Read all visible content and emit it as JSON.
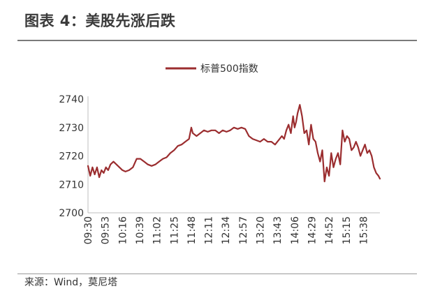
{
  "figure": {
    "title": "图表 4：美股先涨后跌",
    "source": "来源：Wind，莫尼塔"
  },
  "chart_data": {
    "type": "line",
    "title": "图表 4：美股先涨后跌",
    "xlabel": "",
    "ylabel": "",
    "ylim": [
      2700,
      2740
    ],
    "yticks": [
      2700,
      2710,
      2720,
      2730,
      2740
    ],
    "grid": false,
    "legend": "top-center",
    "colors": {
      "line": "#9b2d2f",
      "axis": "#bfbfbf",
      "text": "#333333"
    },
    "xtick_labels": [
      "09:30",
      "09:53",
      "10:16",
      "10:39",
      "11:02",
      "11:25",
      "11:48",
      "12:11",
      "12:34",
      "12:57",
      "13:20",
      "13:43",
      "14:06",
      "14:29",
      "14:52",
      "15:15",
      "15:38"
    ],
    "series": [
      {
        "name": "标普500指数",
        "x": [
          "09:30",
          "09:33",
          "09:36",
          "09:39",
          "09:42",
          "09:45",
          "09:48",
          "09:51",
          "09:54",
          "09:57",
          "10:00",
          "10:04",
          "10:08",
          "10:12",
          "10:16",
          "10:20",
          "10:25",
          "10:30",
          "10:35",
          "10:40",
          "10:45",
          "10:50",
          "10:55",
          "11:00",
          "11:05",
          "11:10",
          "11:15",
          "11:20",
          "11:25",
          "11:30",
          "11:35",
          "11:40",
          "11:45",
          "11:48",
          "11:50",
          "11:55",
          "12:00",
          "12:05",
          "12:10",
          "12:15",
          "12:20",
          "12:25",
          "12:30",
          "12:35",
          "12:40",
          "12:45",
          "12:50",
          "12:55",
          "13:00",
          "13:05",
          "13:10",
          "13:15",
          "13:20",
          "13:25",
          "13:30",
          "13:35",
          "13:40",
          "13:43",
          "13:46",
          "13:49",
          "13:52",
          "13:55",
          "13:58",
          "14:01",
          "14:04",
          "14:06",
          "14:08",
          "14:10",
          "14:13",
          "14:16",
          "14:19",
          "14:22",
          "14:25",
          "14:28",
          "14:31",
          "14:34",
          "14:37",
          "14:40",
          "14:43",
          "14:46",
          "14:49",
          "14:52",
          "14:55",
          "14:58",
          "15:01",
          "15:04",
          "15:07",
          "15:10",
          "15:13",
          "15:16",
          "15:19",
          "15:22",
          "15:25",
          "15:28",
          "15:31",
          "15:34",
          "15:37",
          "15:40",
          "15:43",
          "15:46",
          "15:49",
          "15:52",
          "15:55",
          "15:58",
          "16:00"
        ],
        "values": [
          2716.5,
          2713,
          2716,
          2713.5,
          2716,
          2712.5,
          2715,
          2714,
          2716,
          2715,
          2717,
          2718,
          2717,
          2716,
          2715,
          2714.5,
          2715,
          2716,
          2719,
          2719,
          2718,
          2717,
          2716.5,
          2717,
          2718,
          2719,
          2719.5,
          2721,
          2722,
          2723.5,
          2724,
          2725,
          2726,
          2730,
          2728,
          2727,
          2728,
          2729,
          2728.5,
          2729,
          2729,
          2728,
          2729,
          2728.5,
          2729,
          2730,
          2729.5,
          2730,
          2729.5,
          2727,
          2726,
          2725.5,
          2725,
          2726,
          2725,
          2725,
          2724,
          2725,
          2726,
          2727,
          2726,
          2729,
          2731,
          2728,
          2734,
          2730,
          2732,
          2735,
          2738,
          2734,
          2728,
          2729,
          2724,
          2731,
          2726,
          2725,
          2721,
          2718,
          2722,
          2711,
          2716,
          2713,
          2721,
          2716,
          2719,
          2721,
          2717,
          2729,
          2725,
          2727,
          2726,
          2722,
          2723,
          2725,
          2723,
          2720,
          2722,
          2724,
          2721,
          2722,
          2720,
          2716,
          2714,
          2713,
          2712
        ]
      }
    ]
  }
}
